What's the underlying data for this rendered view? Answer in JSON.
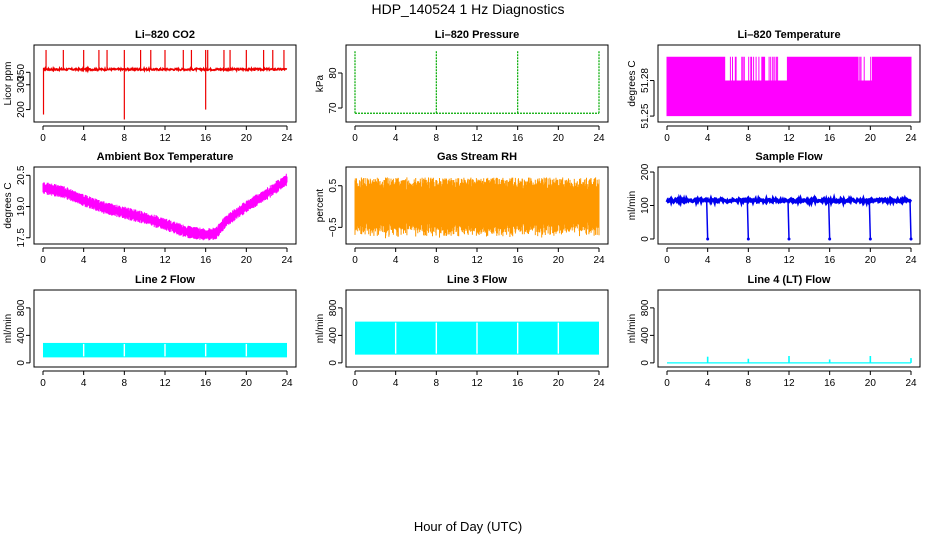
{
  "figure": {
    "title": "HDP_140524  1 Hz Diagnostics",
    "xlabel": "Hour of Day (UTC)"
  },
  "chart_data": [
    {
      "id": "co2",
      "type": "line",
      "title": "Li–820 CO2",
      "ylabel": "Licor ppm",
      "color": "#ee0000",
      "xlim": [
        0,
        24
      ],
      "ylim": [
        150,
        460
      ],
      "xticks": [
        0,
        4,
        8,
        12,
        16,
        20,
        24
      ],
      "xtick_labels": [
        "0",
        "4",
        "8",
        "12",
        "16",
        "20",
        "24"
      ],
      "yticks": [
        200,
        300,
        350
      ],
      "ytick_labels": [
        "200",
        "300",
        "350"
      ],
      "base": 362,
      "noise": 8,
      "spike_up_hours": [
        0.3,
        2.0,
        4.0,
        5.5,
        6.3,
        8.0,
        9.6,
        10.6,
        12.0,
        13.8,
        14.6,
        16.0,
        16.2,
        17.8,
        18.4,
        20.0,
        21.7,
        22.6,
        23.7
      ],
      "spike_up_to": 440,
      "spike_down_hours": [
        0.05,
        8.0,
        16.0
      ],
      "spike_down_to": [
        180,
        160,
        200
      ]
    },
    {
      "id": "pressure",
      "type": "line",
      "title": "Li–820 Pressure",
      "ylabel": "kPa",
      "color": "#00aa00",
      "xlim": [
        0,
        24
      ],
      "ylim": [
        66,
        88
      ],
      "xticks": [
        0,
        4,
        8,
        12,
        16,
        20,
        24
      ],
      "xtick_labels": [
        "0",
        "4",
        "8",
        "12",
        "16",
        "20",
        "24"
      ],
      "yticks": [
        70,
        80
      ],
      "ytick_labels": [
        "70",
        "80"
      ],
      "base": 68.5,
      "spike_hours": [
        0.0,
        8.0,
        16.0,
        24.0
      ],
      "spike_to": 86.5
    },
    {
      "id": "li_temp",
      "type": "line",
      "title": "Li–820 Temperature",
      "ylabel": "degrees C",
      "color": "#ff00ff",
      "xlim": [
        0,
        24
      ],
      "ylim": [
        51.245,
        51.31
      ],
      "xticks": [
        0,
        4,
        8,
        12,
        16,
        20,
        24
      ],
      "xtick_labels": [
        "0",
        "4",
        "8",
        "12",
        "16",
        "20",
        "24"
      ],
      "yticks": [
        51.25,
        51.28
      ],
      "ytick_labels": [
        "51.25",
        "51.28"
      ],
      "low": 51.25,
      "high": 51.3,
      "mid": 51.28
    },
    {
      "id": "box_temp",
      "type": "line",
      "title": "Ambient Box Temperature",
      "ylabel": "degrees C",
      "color": "#ff00ff",
      "xlim": [
        0,
        24
      ],
      "ylim": [
        17.2,
        20.9
      ],
      "xticks": [
        0,
        4,
        8,
        12,
        16,
        20,
        24
      ],
      "xtick_labels": [
        "0",
        "4",
        "8",
        "12",
        "16",
        "20",
        "24"
      ],
      "yticks": [
        17.5,
        19.0,
        20.5
      ],
      "ytick_labels": [
        "17.5",
        "19.0",
        "20.5"
      ],
      "x": [
        0,
        2,
        4,
        6,
        8,
        10,
        12,
        14,
        16,
        17,
        18,
        20,
        22,
        24
      ],
      "y": [
        19.9,
        19.7,
        19.3,
        18.95,
        18.7,
        18.45,
        18.15,
        17.8,
        17.65,
        17.7,
        18.3,
        19.0,
        19.6,
        20.3
      ]
    },
    {
      "id": "rh",
      "type": "line",
      "title": "Gas Stream RH",
      "ylabel": "percent",
      "color": "#ff9900",
      "xlim": [
        0,
        24
      ],
      "ylim": [
        -0.9,
        0.95
      ],
      "xticks": [
        0,
        4,
        8,
        12,
        16,
        20,
        24
      ],
      "xtick_labels": [
        "0",
        "4",
        "8",
        "12",
        "16",
        "20",
        "24"
      ],
      "yticks": [
        -0.5,
        0.5
      ],
      "ytick_labels": [
        "−0.5",
        "0.5"
      ],
      "center": 0.0,
      "amplitude": 0.7
    },
    {
      "id": "sample_flow",
      "type": "line",
      "title": "Sample Flow",
      "ylabel": "ml/min",
      "color": "#0000ee",
      "xlim": [
        0,
        24
      ],
      "ylim": [
        -15,
        215
      ],
      "xticks": [
        0,
        4,
        8,
        12,
        16,
        20,
        24
      ],
      "xtick_labels": [
        "0",
        "4",
        "8",
        "12",
        "16",
        "20",
        "24"
      ],
      "yticks": [
        0,
        100,
        200
      ],
      "ytick_labels": [
        "0",
        "100",
        "200"
      ],
      "base": 115,
      "dip_hours": [
        4,
        8,
        12,
        16,
        20,
        24
      ],
      "dip_to": 0
    },
    {
      "id": "line2",
      "type": "area",
      "title": "Line 2 Flow",
      "ylabel": "ml/min",
      "color": "#00ffff",
      "xlim": [
        0,
        24
      ],
      "ylim": [
        -60,
        1060
      ],
      "xticks": [
        0,
        4,
        8,
        12,
        16,
        20,
        24
      ],
      "xtick_labels": [
        "0",
        "4",
        "8",
        "12",
        "16",
        "20",
        "24"
      ],
      "yticks": [
        0,
        400,
        800
      ],
      "ytick_labels": [
        "0",
        "400",
        "800"
      ],
      "low": 80,
      "high": 290,
      "gap_hours": [
        4,
        8,
        12,
        16,
        20
      ]
    },
    {
      "id": "line3",
      "type": "area",
      "title": "Line 3 Flow",
      "ylabel": "ml/min",
      "color": "#00ffff",
      "xlim": [
        0,
        24
      ],
      "ylim": [
        -60,
        1060
      ],
      "xticks": [
        0,
        4,
        8,
        12,
        16,
        20,
        24
      ],
      "xtick_labels": [
        "0",
        "4",
        "8",
        "12",
        "16",
        "20",
        "24"
      ],
      "yticks": [
        0,
        400,
        800
      ],
      "ytick_labels": [
        "0",
        "400",
        "800"
      ],
      "low": 120,
      "high": 600,
      "gap_hours": [
        4,
        8,
        12,
        16,
        20
      ]
    },
    {
      "id": "line4",
      "type": "line",
      "title": "Line 4 (LT) Flow",
      "ylabel": "ml/min",
      "color": "#00ffff",
      "xlim": [
        0,
        24
      ],
      "ylim": [
        -60,
        1060
      ],
      "xticks": [
        0,
        4,
        8,
        12,
        16,
        20,
        24
      ],
      "xtick_labels": [
        "0",
        "4",
        "8",
        "12",
        "16",
        "20",
        "24"
      ],
      "yticks": [
        0,
        400,
        800
      ],
      "ytick_labels": [
        "0",
        "400",
        "800"
      ],
      "base": 0,
      "spike_hours": [
        4,
        8,
        12,
        16,
        20,
        24
      ],
      "spike_to": [
        90,
        60,
        100,
        50,
        100,
        70
      ]
    }
  ]
}
